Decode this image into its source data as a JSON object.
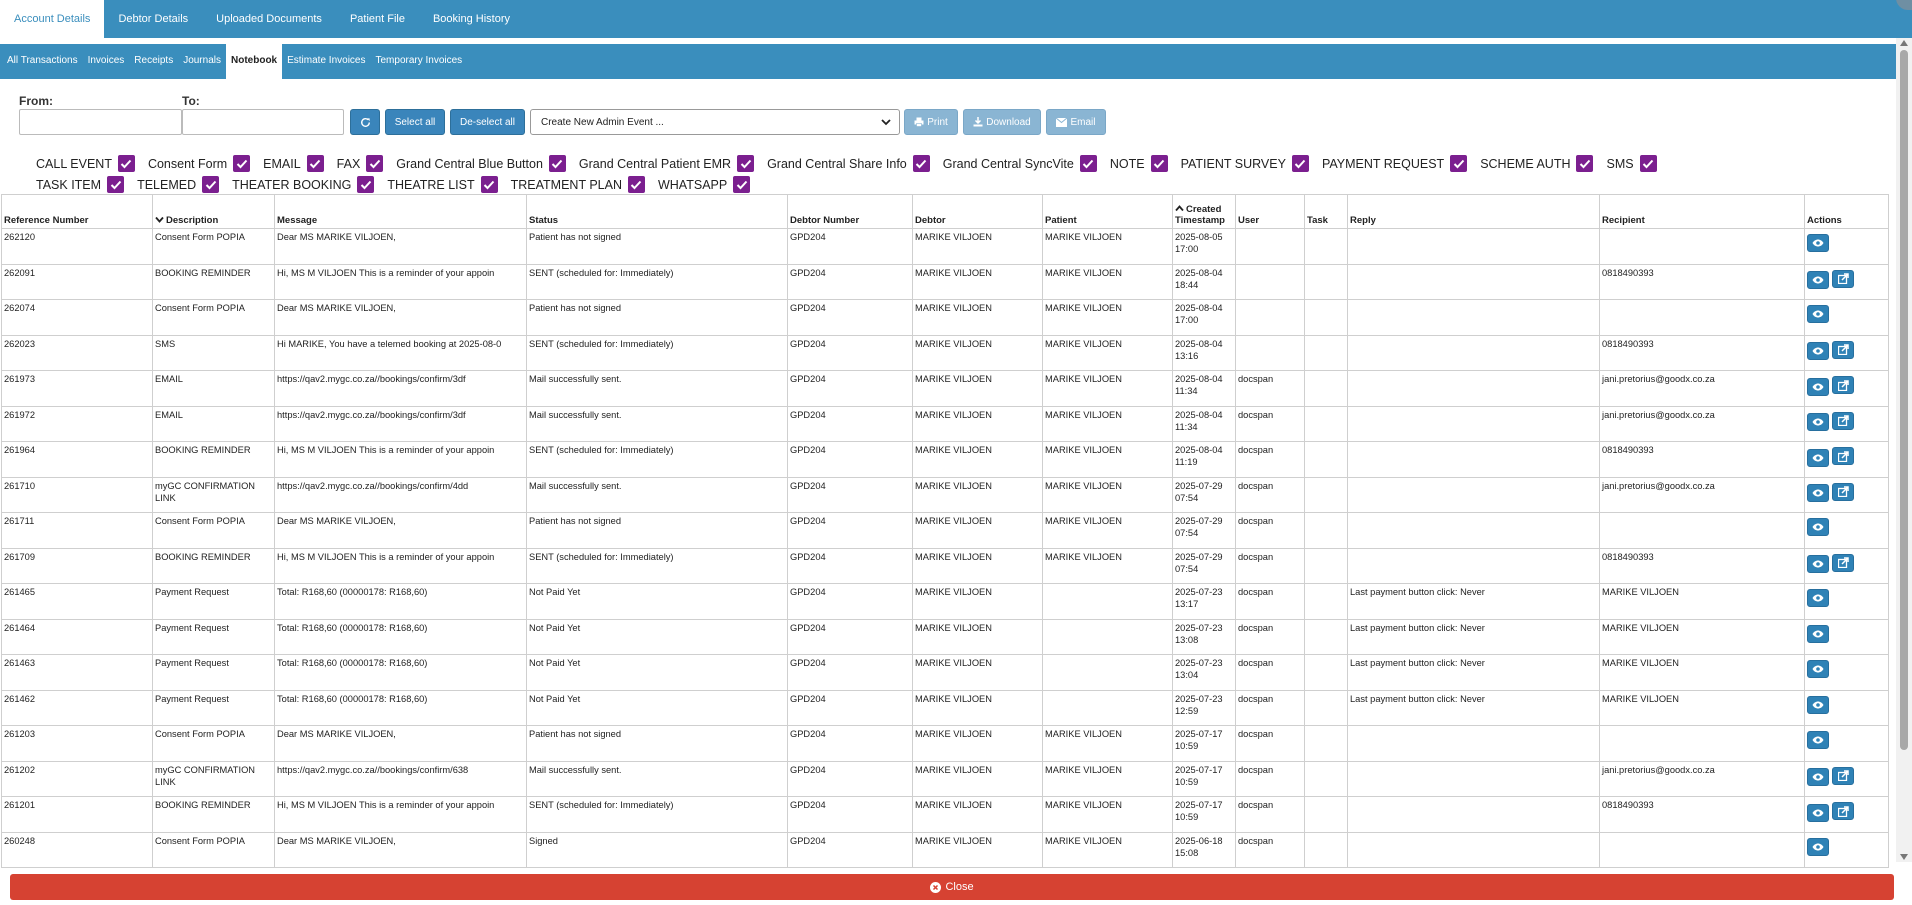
{
  "top_tabs": [
    "Account Details",
    "Debtor Details",
    "Uploaded Documents",
    "Patient File",
    "Booking History"
  ],
  "sub_tabs": [
    "All Transactions",
    "Invoices",
    "Receipts",
    "Journals",
    "Notebook",
    "Estimate Invoices",
    "Temporary Invoices"
  ],
  "filters": {
    "from_label": "From:",
    "to_label": "To:",
    "from_value": "",
    "to_value": "",
    "select_all": "Select all",
    "deselect_all": "De-select all",
    "event_select": "Create New Admin Event ...",
    "print": "Print",
    "download": "Download",
    "email": "Email"
  },
  "event_types_row1": [
    "CALL EVENT",
    "Consent Form",
    "EMAIL",
    "FAX",
    "Grand Central Blue Button",
    "Grand Central Patient EMR",
    "Grand Central Share Info",
    "Grand Central SyncVite",
    "NOTE",
    "PATIENT SURVEY",
    "PAYMENT REQUEST",
    "SCHEME AUTH",
    "SMS"
  ],
  "event_types_row2": [
    "TASK ITEM",
    "TELEMED",
    "THEATER BOOKING",
    "THEATRE LIST",
    "TREATMENT PLAN",
    "WHATSAPP"
  ],
  "table": {
    "headers": {
      "ref": "Reference Number",
      "desc": "Description",
      "msg": "Message",
      "status": "Status",
      "debtor_no": "Debtor Number",
      "debtor": "Debtor",
      "patient": "Patient",
      "created_1": "Created",
      "created_2": "Timestamp",
      "user": "User",
      "task": "Task",
      "reply": "Reply",
      "recipient": "Recipient",
      "actions": "Actions"
    },
    "rows": [
      {
        "ref": "262120",
        "desc": "Consent Form POPIA",
        "msg": "Dear MS MARIKE VILJOEN,",
        "status": "Patient has not signed",
        "debtor_no": "GPD204",
        "debtor": "MARIKE VILJOEN",
        "patient": "MARIKE VILJOEN",
        "date": "2025-08-05",
        "time": "17:00",
        "user": "",
        "reply": "",
        "recipient": "",
        "share": false
      },
      {
        "ref": "262091",
        "desc": "BOOKING REMINDER",
        "msg": "Hi, MS M VILJOEN This is a reminder of your appoin",
        "status": "SENT (scheduled for: Immediately)",
        "debtor_no": "GPD204",
        "debtor": "MARIKE VILJOEN",
        "patient": "MARIKE VILJOEN",
        "date": "2025-08-04",
        "time": "18:44",
        "user": "",
        "reply": "",
        "recipient": "0818490393",
        "share": true
      },
      {
        "ref": "262074",
        "desc": "Consent Form POPIA",
        "msg": "Dear MS MARIKE VILJOEN,",
        "status": "Patient has not signed",
        "debtor_no": "GPD204",
        "debtor": "MARIKE VILJOEN",
        "patient": "MARIKE VILJOEN",
        "date": "2025-08-04",
        "time": "17:00",
        "user": "",
        "reply": "",
        "recipient": "",
        "share": false
      },
      {
        "ref": "262023",
        "desc": "SMS",
        "msg": "Hi MARIKE, You have a telemed booking at 2025-08-0",
        "status": "SENT (scheduled for: Immediately)",
        "debtor_no": "GPD204",
        "debtor": "MARIKE VILJOEN",
        "patient": "MARIKE VILJOEN",
        "date": "2025-08-04",
        "time": "13:16",
        "user": "",
        "reply": "",
        "recipient": "0818490393",
        "share": true
      },
      {
        "ref": "261973",
        "desc": "EMAIL",
        "msg": "https://qav2.mygc.co.za//bookings/confirm/3df",
        "status": "Mail successfully sent.",
        "debtor_no": "GPD204",
        "debtor": "MARIKE VILJOEN",
        "patient": "MARIKE VILJOEN",
        "date": "2025-08-04",
        "time": "11:34",
        "user": "docspan",
        "reply": "",
        "recipient": "jani.pretorius@goodx.co.za",
        "share": true
      },
      {
        "ref": "261972",
        "desc": "EMAIL",
        "msg": "https://qav2.mygc.co.za//bookings/confirm/3df",
        "status": "Mail successfully sent.",
        "debtor_no": "GPD204",
        "debtor": "MARIKE VILJOEN",
        "patient": "MARIKE VILJOEN",
        "date": "2025-08-04",
        "time": "11:34",
        "user": "docspan",
        "reply": "",
        "recipient": "jani.pretorius@goodx.co.za",
        "share": true
      },
      {
        "ref": "261964",
        "desc": "BOOKING REMINDER",
        "msg": "Hi, MS M VILJOEN This is a reminder of your appoin",
        "status": "SENT (scheduled for: Immediately)",
        "debtor_no": "GPD204",
        "debtor": "MARIKE VILJOEN",
        "patient": "MARIKE VILJOEN",
        "date": "2025-08-04",
        "time": "11:19",
        "user": "docspan",
        "reply": "",
        "recipient": "0818490393",
        "share": true
      },
      {
        "ref": "261710",
        "desc": "myGC CONFIRMATION LINK",
        "msg": "https://qav2.mygc.co.za//bookings/confirm/4dd",
        "status": "Mail successfully sent.",
        "debtor_no": "GPD204",
        "debtor": "MARIKE VILJOEN",
        "patient": "MARIKE VILJOEN",
        "date": "2025-07-29",
        "time": "07:54",
        "user": "docspan",
        "reply": "",
        "recipient": "jani.pretorius@goodx.co.za",
        "share": true
      },
      {
        "ref": "261711",
        "desc": "Consent Form POPIA",
        "msg": "Dear MS MARIKE VILJOEN,",
        "status": "Patient has not signed",
        "debtor_no": "GPD204",
        "debtor": "MARIKE VILJOEN",
        "patient": "MARIKE VILJOEN",
        "date": "2025-07-29",
        "time": "07:54",
        "user": "docspan",
        "reply": "",
        "recipient": "",
        "share": false
      },
      {
        "ref": "261709",
        "desc": "BOOKING REMINDER",
        "msg": "Hi, MS M VILJOEN This is a reminder of your appoin",
        "status": "SENT (scheduled for: Immediately)",
        "debtor_no": "GPD204",
        "debtor": "MARIKE VILJOEN",
        "patient": "MARIKE VILJOEN",
        "date": "2025-07-29",
        "time": "07:54",
        "user": "docspan",
        "reply": "",
        "recipient": "0818490393",
        "share": true
      },
      {
        "ref": "261465",
        "desc": "Payment Request",
        "msg": "Total: R168,60 (00000178: R168,60)",
        "status": "Not Paid Yet",
        "debtor_no": "GPD204",
        "debtor": "MARIKE VILJOEN",
        "patient": "",
        "date": "2025-07-23",
        "time": "13:17",
        "user": "docspan",
        "reply": "Last payment button click: Never",
        "recipient": "MARIKE VILJOEN",
        "share": false
      },
      {
        "ref": "261464",
        "desc": "Payment Request",
        "msg": "Total: R168,60 (00000178: R168,60)",
        "status": "Not Paid Yet",
        "debtor_no": "GPD204",
        "debtor": "MARIKE VILJOEN",
        "patient": "",
        "date": "2025-07-23",
        "time": "13:08",
        "user": "docspan",
        "reply": "Last payment button click: Never",
        "recipient": "MARIKE VILJOEN",
        "share": false
      },
      {
        "ref": "261463",
        "desc": "Payment Request",
        "msg": "Total: R168,60 (00000178: R168,60)",
        "status": "Not Paid Yet",
        "debtor_no": "GPD204",
        "debtor": "MARIKE VILJOEN",
        "patient": "",
        "date": "2025-07-23",
        "time": "13:04",
        "user": "docspan",
        "reply": "Last payment button click: Never",
        "recipient": "MARIKE VILJOEN",
        "share": false
      },
      {
        "ref": "261462",
        "desc": "Payment Request",
        "msg": "Total: R168,60 (00000178: R168,60)",
        "status": "Not Paid Yet",
        "debtor_no": "GPD204",
        "debtor": "MARIKE VILJOEN",
        "patient": "",
        "date": "2025-07-23",
        "time": "12:59",
        "user": "docspan",
        "reply": "Last payment button click: Never",
        "recipient": "MARIKE VILJOEN",
        "share": false
      },
      {
        "ref": "261203",
        "desc": "Consent Form POPIA",
        "msg": "Dear MS MARIKE VILJOEN,",
        "status": "Patient has not signed",
        "debtor_no": "GPD204",
        "debtor": "MARIKE VILJOEN",
        "patient": "MARIKE VILJOEN",
        "date": "2025-07-17",
        "time": "10:59",
        "user": "docspan",
        "reply": "",
        "recipient": "",
        "share": false
      },
      {
        "ref": "261202",
        "desc": "myGC CONFIRMATION LINK",
        "msg": "https://qav2.mygc.co.za//bookings/confirm/638",
        "status": "Mail successfully sent.",
        "debtor_no": "GPD204",
        "debtor": "MARIKE VILJOEN",
        "patient": "MARIKE VILJOEN",
        "date": "2025-07-17",
        "time": "10:59",
        "user": "docspan",
        "reply": "",
        "recipient": "jani.pretorius@goodx.co.za",
        "share": true
      },
      {
        "ref": "261201",
        "desc": "BOOKING REMINDER",
        "msg": "Hi, MS M VILJOEN This is a reminder of your appoin",
        "status": "SENT (scheduled for: Immediately)",
        "debtor_no": "GPD204",
        "debtor": "MARIKE VILJOEN",
        "patient": "MARIKE VILJOEN",
        "date": "2025-07-17",
        "time": "10:59",
        "user": "docspan",
        "reply": "",
        "recipient": "0818490393",
        "share": true
      },
      {
        "ref": "260248",
        "desc": "Consent Form POPIA",
        "msg": "Dear MS MARIKE VILJOEN,",
        "status": "Signed",
        "debtor_no": "GPD204",
        "debtor": "MARIKE VILJOEN",
        "patient": "MARIKE VILJOEN",
        "date": "2025-06-18",
        "time": "15:08",
        "user": "docspan",
        "reply": "",
        "recipient": "",
        "share": false
      }
    ]
  },
  "close_label": "Close",
  "colors": {
    "tab_bar": "#3a8ebd",
    "checkbox": "#7b1f8f",
    "action_button": "#2f82b6",
    "close_bar": "#d64232"
  }
}
